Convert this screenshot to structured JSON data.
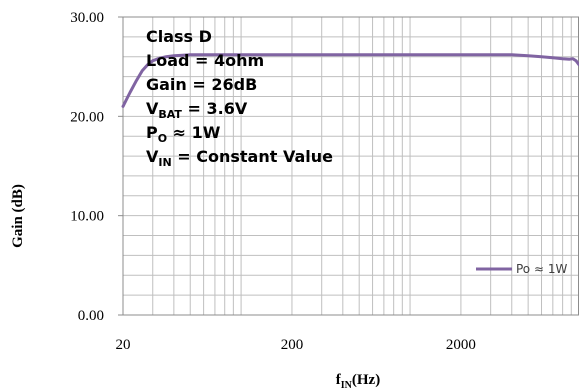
{
  "chart_data": {
    "type": "line",
    "x_scale": "log",
    "xlim": [
      20,
      10000
    ],
    "ylim": [
      0,
      30
    ],
    "grid": true,
    "xlabel": {
      "main": "f",
      "sub": "IN",
      "tail": "(Hz)"
    },
    "ylabel": "Gain (dB)",
    "x_ticks": [
      {
        "value": 20,
        "label": "20"
      },
      {
        "value": 200,
        "label": "200"
      },
      {
        "value": 2000,
        "label": "2000"
      }
    ],
    "y_ticks": [
      {
        "value": 0,
        "label": "0.00"
      },
      {
        "value": 10,
        "label": "10.00"
      },
      {
        "value": 20,
        "label": "20.00"
      },
      {
        "value": 30,
        "label": "30.00"
      }
    ],
    "legend_position": "right",
    "series": [
      {
        "name": "Po ≈ 1W",
        "color": "#8064a2",
        "points": [
          [
            20,
            21.0
          ],
          [
            22,
            22.4
          ],
          [
            24,
            23.6
          ],
          [
            26,
            24.6
          ],
          [
            28,
            25.2
          ],
          [
            30,
            25.6
          ],
          [
            33,
            25.85
          ],
          [
            36,
            26.0
          ],
          [
            40,
            26.1
          ],
          [
            45,
            26.15
          ],
          [
            50,
            26.2
          ],
          [
            60,
            26.2
          ],
          [
            100,
            26.2
          ],
          [
            200,
            26.2
          ],
          [
            500,
            26.2
          ],
          [
            1000,
            26.2
          ],
          [
            2000,
            26.2
          ],
          [
            3000,
            26.2
          ],
          [
            4000,
            26.2
          ],
          [
            5000,
            26.1
          ],
          [
            6000,
            26.0
          ],
          [
            7000,
            25.9
          ],
          [
            8000,
            25.8
          ],
          [
            8800,
            25.75
          ],
          [
            9200,
            25.8
          ],
          [
            9600,
            25.6
          ],
          [
            10000,
            25.2
          ]
        ]
      }
    ],
    "annotations": [
      {
        "main": "Class D",
        "sub": "",
        "tail": ""
      },
      {
        "main": "Load = 4ohm",
        "sub": "",
        "tail": ""
      },
      {
        "main": "Gain = 26dB",
        "sub": "",
        "tail": ""
      },
      {
        "main": "V",
        "sub": "BAT",
        "tail": " = 3.6V"
      },
      {
        "main": "P",
        "sub": "O",
        "tail": " ≈ 1W"
      },
      {
        "main": "V",
        "sub": "IN",
        "tail": " = Constant Value"
      }
    ]
  }
}
